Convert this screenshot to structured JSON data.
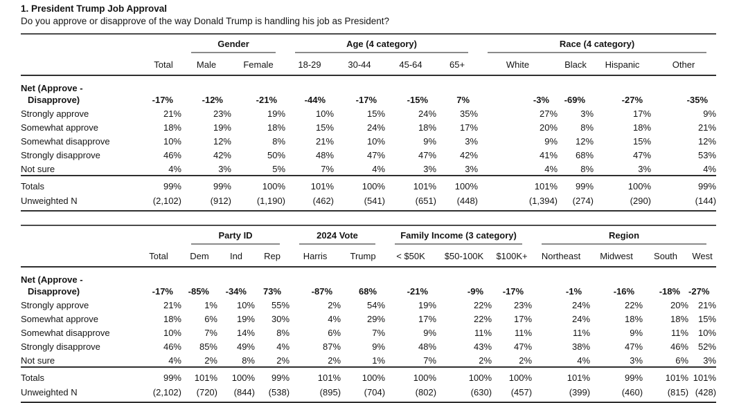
{
  "page": {
    "title": "1. President Trump Job Approval",
    "question": "Do you approve or disapprove of the way Donald Trump is handling his job as President?"
  },
  "colors": {
    "text": "#141414",
    "rule_heavy": "#2e2e2e",
    "rule_top": "#4a4a4a",
    "rule_group_underline": "#8a8a8a"
  },
  "tables": [
    {
      "name": "demographics-crosstab",
      "groups": [
        {
          "label": "",
          "span": 1
        },
        {
          "label": "Gender",
          "span": 2
        },
        {
          "label": "Age (4 category)",
          "span": 4
        },
        {
          "label": "Race (4 category)",
          "span": 4
        }
      ],
      "columns": [
        "Total",
        "Male",
        "Female",
        "18-29",
        "30-44",
        "45-64",
        "65+",
        "White",
        "Black",
        "Hispanic",
        "Other"
      ],
      "rows": [
        {
          "label_lines": [
            "Net (Approve -",
            "Disapprove)"
          ],
          "bold": true,
          "values": [
            "-17%",
            "-12%",
            "-21%",
            "-44%",
            "-17%",
            "-15%",
            "7%",
            "-3%",
            "-69%",
            "-27%",
            "-35%"
          ]
        },
        {
          "label_lines": [
            "Strongly approve"
          ],
          "values": [
            "21%",
            "23%",
            "19%",
            "10%",
            "15%",
            "24%",
            "35%",
            "27%",
            "3%",
            "17%",
            "9%"
          ]
        },
        {
          "label_lines": [
            "Somewhat approve"
          ],
          "values": [
            "18%",
            "19%",
            "18%",
            "15%",
            "24%",
            "18%",
            "17%",
            "20%",
            "8%",
            "18%",
            "21%"
          ]
        },
        {
          "label_lines": [
            "Somewhat disapprove"
          ],
          "values": [
            "10%",
            "12%",
            "8%",
            "21%",
            "10%",
            "9%",
            "3%",
            "9%",
            "12%",
            "15%",
            "12%"
          ]
        },
        {
          "label_lines": [
            "Strongly disapprove"
          ],
          "values": [
            "46%",
            "42%",
            "50%",
            "48%",
            "47%",
            "47%",
            "42%",
            "41%",
            "68%",
            "47%",
            "53%"
          ]
        },
        {
          "label_lines": [
            "Not sure"
          ],
          "values": [
            "4%",
            "3%",
            "5%",
            "7%",
            "4%",
            "3%",
            "3%",
            "4%",
            "8%",
            "3%",
            "4%"
          ]
        }
      ],
      "footer_rows": [
        {
          "label": "Totals",
          "values": [
            "99%",
            "99%",
            "100%",
            "101%",
            "100%",
            "101%",
            "100%",
            "101%",
            "99%",
            "100%",
            "99%"
          ]
        },
        {
          "label": "Unweighted N",
          "values": [
            "(2,102)",
            "(912)",
            "(1,190)",
            "(462)",
            "(541)",
            "(651)",
            "(448)",
            "(1,394)",
            "(274)",
            "(290)",
            "(144)"
          ]
        }
      ]
    },
    {
      "name": "politics-crosstab",
      "groups": [
        {
          "label": "",
          "span": 1
        },
        {
          "label": "Party ID",
          "span": 3
        },
        {
          "label": "2024 Vote",
          "span": 2
        },
        {
          "label": "Family Income (3 category)",
          "span": 3
        },
        {
          "label": "Region",
          "span": 4
        }
      ],
      "columns": [
        "Total",
        "Dem",
        "Ind",
        "Rep",
        "Harris",
        "Trump",
        "< $50K",
        "$50-100K",
        "$100K+",
        "Northeast",
        "Midwest",
        "South",
        "West"
      ],
      "rows": [
        {
          "label_lines": [
            "Net (Approve -",
            "Disapprove)"
          ],
          "bold": true,
          "values": [
            "-17%",
            "-85%",
            "-34%",
            "73%",
            "-87%",
            "68%",
            "-21%",
            "-9%",
            "-17%",
            "-1%",
            "-16%",
            "-18%",
            "-27%"
          ]
        },
        {
          "label_lines": [
            "Strongly approve"
          ],
          "values": [
            "21%",
            "1%",
            "10%",
            "55%",
            "2%",
            "54%",
            "19%",
            "22%",
            "23%",
            "24%",
            "22%",
            "20%",
            "21%"
          ]
        },
        {
          "label_lines": [
            "Somewhat approve"
          ],
          "values": [
            "18%",
            "6%",
            "19%",
            "30%",
            "4%",
            "29%",
            "17%",
            "22%",
            "17%",
            "24%",
            "18%",
            "18%",
            "15%"
          ]
        },
        {
          "label_lines": [
            "Somewhat disapprove"
          ],
          "values": [
            "10%",
            "7%",
            "14%",
            "8%",
            "6%",
            "7%",
            "9%",
            "11%",
            "11%",
            "11%",
            "9%",
            "11%",
            "10%"
          ]
        },
        {
          "label_lines": [
            "Strongly disapprove"
          ],
          "values": [
            "46%",
            "85%",
            "49%",
            "4%",
            "87%",
            "9%",
            "48%",
            "43%",
            "47%",
            "38%",
            "47%",
            "46%",
            "52%"
          ]
        },
        {
          "label_lines": [
            "Not sure"
          ],
          "values": [
            "4%",
            "2%",
            "8%",
            "2%",
            "2%",
            "1%",
            "7%",
            "2%",
            "2%",
            "4%",
            "3%",
            "6%",
            "3%"
          ]
        }
      ],
      "footer_rows": [
        {
          "label": "Totals",
          "values": [
            "99%",
            "101%",
            "100%",
            "99%",
            "101%",
            "100%",
            "100%",
            "100%",
            "100%",
            "101%",
            "99%",
            "101%",
            "101%"
          ]
        },
        {
          "label": "Unweighted N",
          "values": [
            "(2,102)",
            "(720)",
            "(844)",
            "(538)",
            "(895)",
            "(704)",
            "(802)",
            "(630)",
            "(457)",
            "(399)",
            "(460)",
            "(815)",
            "(428)"
          ]
        }
      ]
    }
  ]
}
